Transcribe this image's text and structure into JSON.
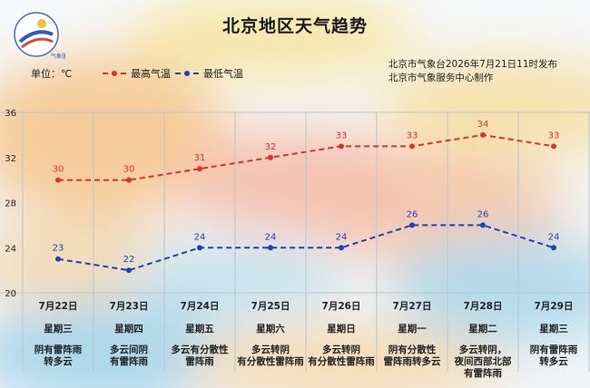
{
  "header": {
    "title": "北京地区天气趋势",
    "unit_label": "单位：℃",
    "issuer_line1": "北京市气象台2026年7月21日11时发布",
    "issuer_line2": "北京市气象服务中心制作"
  },
  "logo": {
    "icon": "weather-service-logo-icon",
    "text": "气象服务"
  },
  "colors": {
    "high": "#d9332a",
    "low": "#2140b8",
    "grid": "#b8c4cc",
    "text": "#222222"
  },
  "chart_data": {
    "type": "line",
    "title": "北京地区天气趋势",
    "ylabel": "单位：℃",
    "ylim": [
      20,
      36
    ],
    "yticks": [
      20,
      24,
      28,
      32,
      36
    ],
    "grid": true,
    "legend_placement": "top-left",
    "categories": [
      "7月22日",
      "7月23日",
      "7月24日",
      "7月25日",
      "7月26日",
      "7月27日",
      "7月28日",
      "7月29日"
    ],
    "weekdays": [
      "星期三",
      "星期四",
      "星期五",
      "星期六",
      "星期日",
      "星期一",
      "星期二",
      "星期三"
    ],
    "weather": [
      [
        "阴有雷阵雨",
        "转多云"
      ],
      [
        "多云间阴",
        "有雷阵雨"
      ],
      [
        "多云有分散性",
        "雷阵雨"
      ],
      [
        "多云转阴",
        "有分散性雷阵雨"
      ],
      [
        "多云转阴",
        "有分散性雷阵雨"
      ],
      [
        "阴有分散性",
        "雷阵雨转多云"
      ],
      [
        "多云转阴，",
        "夜间西部北部",
        "有雷阵雨"
      ],
      [
        "阴有雷阵雨",
        "转多云"
      ]
    ],
    "series": [
      {
        "name": "最高气温",
        "values": [
          30,
          30,
          31,
          32,
          33,
          33,
          34,
          33
        ]
      },
      {
        "name": "最低气温",
        "values": [
          23,
          22,
          24,
          24,
          24,
          26,
          26,
          24
        ]
      }
    ]
  }
}
